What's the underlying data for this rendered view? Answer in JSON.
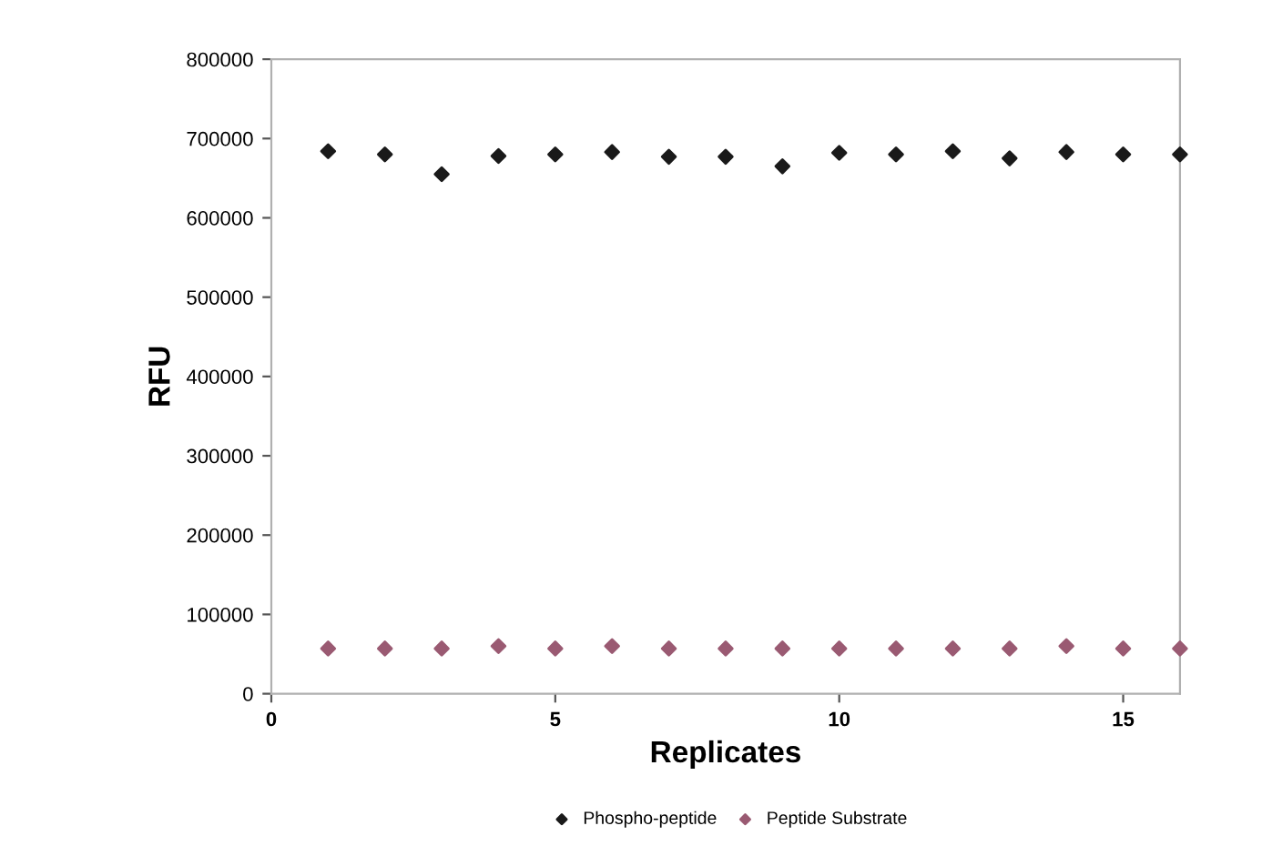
{
  "chart_data": {
    "type": "scatter",
    "xlabel": "Replicates",
    "ylabel": "RFU",
    "x": [
      1,
      2,
      3,
      4,
      5,
      6,
      7,
      8,
      9,
      10,
      11,
      12,
      13,
      14,
      15,
      16
    ],
    "series": [
      {
        "name": "Phospho-peptide",
        "color": "#1a1a1a",
        "values": [
          684000,
          680000,
          655000,
          678000,
          680000,
          683000,
          677000,
          677000,
          665000,
          682000,
          680000,
          684000,
          675000,
          683000,
          680000,
          680000
        ]
      },
      {
        "name": "Peptide Substrate",
        "color": "#9a5a72",
        "values": [
          57000,
          57000,
          57000,
          60000,
          57000,
          60000,
          57000,
          57000,
          57000,
          57000,
          57000,
          57000,
          57000,
          60000,
          57000,
          57000
        ]
      }
    ],
    "xlim": [
      0,
      16
    ],
    "xticks": [
      0,
      5,
      10,
      15
    ],
    "ylim": [
      0,
      800000
    ],
    "yticks": [
      0,
      100000,
      200000,
      300000,
      400000,
      500000,
      600000,
      700000,
      800000
    ],
    "grid": false,
    "legend": "bottom",
    "marker": "diamond"
  }
}
